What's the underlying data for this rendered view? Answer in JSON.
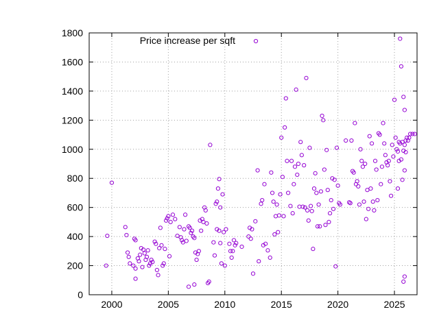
{
  "chart_data": {
    "type": "scatter",
    "title": "",
    "xlabel": "",
    "ylabel": "",
    "xlim": [
      1998,
      2027
    ],
    "ylim": [
      0,
      1800
    ],
    "xticks": [
      2000,
      2005,
      2010,
      2015,
      2020,
      2025
    ],
    "yticks": [
      0,
      200,
      400,
      600,
      800,
      1000,
      1200,
      1400,
      1600,
      1800
    ],
    "grid": true,
    "legend": {
      "position": "top-left"
    },
    "series": [
      {
        "name": "Price increase per sqft",
        "color": "#9400d3",
        "marker": "open-circle",
        "points": [
          [
            1999.5,
            200
          ],
          [
            1999.6,
            405
          ],
          [
            2000.0,
            770
          ],
          [
            2001.2,
            465
          ],
          [
            2001.3,
            410
          ],
          [
            2001.4,
            290
          ],
          [
            2001.5,
            260
          ],
          [
            2001.6,
            215
          ],
          [
            2001.9,
            200
          ],
          [
            2002.0,
            385
          ],
          [
            2002.1,
            375
          ],
          [
            2002.1,
            180
          ],
          [
            2002.1,
            110
          ],
          [
            2002.3,
            250
          ],
          [
            2002.4,
            230
          ],
          [
            2002.5,
            275
          ],
          [
            2002.6,
            320
          ],
          [
            2002.7,
            190
          ],
          [
            2002.8,
            310
          ],
          [
            2002.9,
            285
          ],
          [
            2003.0,
            240
          ],
          [
            2003.1,
            260
          ],
          [
            2003.2,
            305
          ],
          [
            2003.3,
            200
          ],
          [
            2003.4,
            215
          ],
          [
            2003.5,
            240
          ],
          [
            2003.6,
            225
          ],
          [
            2003.8,
            365
          ],
          [
            2003.9,
            350
          ],
          [
            2004.0,
            170
          ],
          [
            2004.1,
            135
          ],
          [
            2004.2,
            320
          ],
          [
            2004.3,
            460
          ],
          [
            2004.4,
            340
          ],
          [
            2004.5,
            200
          ],
          [
            2004.6,
            215
          ],
          [
            2004.7,
            315
          ],
          [
            2004.8,
            510
          ],
          [
            2004.9,
            525
          ],
          [
            2005.0,
            540
          ],
          [
            2005.1,
            265
          ],
          [
            2005.2,
            500
          ],
          [
            2005.4,
            550
          ],
          [
            2005.6,
            520
          ],
          [
            2005.8,
            405
          ],
          [
            2006.0,
            465
          ],
          [
            2006.1,
            395
          ],
          [
            2006.2,
            375
          ],
          [
            2006.3,
            360
          ],
          [
            2006.4,
            450
          ],
          [
            2006.5,
            550
          ],
          [
            2006.6,
            370
          ],
          [
            2006.8,
            470
          ],
          [
            2006.9,
            460
          ],
          [
            2007.0,
            425
          ],
          [
            2007.1,
            440
          ],
          [
            2007.2,
            400
          ],
          [
            2007.3,
            390
          ],
          [
            2007.4,
            290
          ],
          [
            2007.5,
            240
          ],
          [
            2007.6,
            280
          ],
          [
            2007.7,
            300
          ],
          [
            2007.8,
            510
          ],
          [
            2007.9,
            440
          ],
          [
            2008.0,
            520
          ],
          [
            2008.1,
            500
          ],
          [
            2008.2,
            600
          ],
          [
            2008.3,
            580
          ],
          [
            2008.4,
            490
          ],
          [
            2008.5,
            80
          ],
          [
            2008.6,
            90
          ],
          [
            2006.8,
            55
          ],
          [
            2007.3,
            70
          ],
          [
            2008.7,
            1030
          ],
          [
            2009.0,
            360
          ],
          [
            2009.2,
            625
          ],
          [
            2009.3,
            640
          ],
          [
            2009.4,
            730
          ],
          [
            2009.5,
            795
          ],
          [
            2009.6,
            600
          ],
          [
            2009.1,
            270
          ],
          [
            2009.3,
            450
          ],
          [
            2009.5,
            440
          ],
          [
            2009.6,
            355
          ],
          [
            2009.7,
            215
          ],
          [
            2009.8,
            690
          ],
          [
            2009.9,
            430
          ],
          [
            2010.0,
            200
          ],
          [
            2010.1,
            450
          ],
          [
            2010.4,
            350
          ],
          [
            2010.5,
            300
          ],
          [
            2010.6,
            255
          ],
          [
            2010.7,
            300
          ],
          [
            2010.8,
            375
          ],
          [
            2010.9,
            340
          ],
          [
            2011.0,
            355
          ],
          [
            2011.5,
            330
          ],
          [
            2012.1,
            400
          ],
          [
            2012.2,
            460
          ],
          [
            2012.3,
            385
          ],
          [
            2012.4,
            450
          ],
          [
            2012.5,
            145
          ],
          [
            2012.7,
            505
          ],
          [
            2012.9,
            855
          ],
          [
            2013.0,
            230
          ],
          [
            2013.2,
            625
          ],
          [
            2013.3,
            650
          ],
          [
            2013.4,
            340
          ],
          [
            2013.5,
            760
          ],
          [
            2013.6,
            350
          ],
          [
            2013.8,
            305
          ],
          [
            2014.0,
            255
          ],
          [
            2014.1,
            840
          ],
          [
            2014.2,
            700
          ],
          [
            2014.3,
            640
          ],
          [
            2014.4,
            415
          ],
          [
            2014.5,
            540
          ],
          [
            2014.6,
            620
          ],
          [
            2014.7,
            430
          ],
          [
            2014.8,
            545
          ],
          [
            2014.9,
            690
          ],
          [
            2015.0,
            1080
          ],
          [
            2015.1,
            810
          ],
          [
            2015.2,
            540
          ],
          [
            2015.3,
            1150
          ],
          [
            2015.4,
            1350
          ],
          [
            2015.5,
            920
          ],
          [
            2015.6,
            700
          ],
          [
            2015.8,
            610
          ],
          [
            2015.9,
            920
          ],
          [
            2016.0,
            560
          ],
          [
            2016.1,
            760
          ],
          [
            2016.2,
            880
          ],
          [
            2016.3,
            1410
          ],
          [
            2016.4,
            825
          ],
          [
            2016.5,
            900
          ],
          [
            2016.6,
            605
          ],
          [
            2016.7,
            1050
          ],
          [
            2016.8,
            960
          ],
          [
            2016.9,
            605
          ],
          [
            2017.0,
            890
          ],
          [
            2017.1,
            600
          ],
          [
            2017.2,
            1490
          ],
          [
            2017.3,
            580
          ],
          [
            2017.4,
            510
          ],
          [
            2017.5,
            1010
          ],
          [
            2017.6,
            610
          ],
          [
            2017.7,
            575
          ],
          [
            2017.8,
            315
          ],
          [
            2017.9,
            730
          ],
          [
            2018.0,
            835
          ],
          [
            2018.1,
            700
          ],
          [
            2018.2,
            470
          ],
          [
            2018.3,
            620
          ],
          [
            2018.4,
            470
          ],
          [
            2018.5,
            710
          ],
          [
            2018.6,
            1230
          ],
          [
            2018.7,
            1200
          ],
          [
            2018.8,
            860
          ],
          [
            2018.9,
            480
          ],
          [
            2019.0,
            995
          ],
          [
            2019.1,
            720
          ],
          [
            2019.2,
            500
          ],
          [
            2019.3,
            560
          ],
          [
            2019.4,
            650
          ],
          [
            2019.5,
            800
          ],
          [
            2019.6,
            590
          ],
          [
            2019.7,
            790
          ],
          [
            2019.8,
            195
          ],
          [
            2019.9,
            1010
          ],
          [
            2020.0,
            750
          ],
          [
            2020.1,
            630
          ],
          [
            2020.2,
            620
          ],
          [
            2020.7,
            1060
          ],
          [
            2021.0,
            635
          ],
          [
            2021.1,
            630
          ],
          [
            2021.2,
            1060
          ],
          [
            2021.3,
            850
          ],
          [
            2021.4,
            840
          ],
          [
            2021.5,
            1180
          ],
          [
            2021.6,
            760
          ],
          [
            2021.7,
            780
          ],
          [
            2021.8,
            745
          ],
          [
            2021.9,
            620
          ],
          [
            2022.0,
            1000
          ],
          [
            2022.1,
            920
          ],
          [
            2022.2,
            880
          ],
          [
            2022.3,
            640
          ],
          [
            2022.4,
            900
          ],
          [
            2022.5,
            520
          ],
          [
            2022.6,
            720
          ],
          [
            2022.7,
            590
          ],
          [
            2022.8,
            1090
          ],
          [
            2022.9,
            730
          ],
          [
            2023.0,
            1040
          ],
          [
            2023.1,
            640
          ],
          [
            2023.2,
            580
          ],
          [
            2023.3,
            920
          ],
          [
            2023.4,
            860
          ],
          [
            2023.5,
            650
          ],
          [
            2023.6,
            1110
          ],
          [
            2023.7,
            1100
          ],
          [
            2023.8,
            760
          ],
          [
            2023.9,
            880
          ],
          [
            2024.0,
            1180
          ],
          [
            2024.1,
            1040
          ],
          [
            2024.2,
            960
          ],
          [
            2024.3,
            910
          ],
          [
            2024.4,
            890
          ],
          [
            2024.5,
            920
          ],
          [
            2024.6,
            780
          ],
          [
            2024.7,
            680
          ],
          [
            2024.8,
            1030
          ],
          [
            2024.9,
            950
          ],
          [
            2025.0,
            1340
          ],
          [
            2025.1,
            1080
          ],
          [
            2025.2,
            1000
          ],
          [
            2025.3,
            730
          ],
          [
            2025.4,
            920
          ],
          [
            2025.5,
            1040
          ],
          [
            2025.6,
            930
          ],
          [
            2025.7,
            790
          ],
          [
            2025.8,
            90
          ],
          [
            2025.9,
            125
          ],
          [
            2025.3,
            985
          ],
          [
            2025.4,
            1050
          ],
          [
            2025.5,
            1760
          ],
          [
            2025.6,
            1570
          ],
          [
            2025.7,
            1050
          ],
          [
            2025.8,
            1360
          ],
          [
            2025.8,
            990
          ],
          [
            2025.9,
            1270
          ],
          [
            2025.9,
            1030
          ],
          [
            2026.0,
            1060
          ],
          [
            2026.0,
            980
          ],
          [
            2026.1,
            1080
          ],
          [
            2026.2,
            1060
          ],
          [
            2026.3,
            1080
          ],
          [
            2026.4,
            1105
          ],
          [
            2026.6,
            1105
          ],
          [
            2026.8,
            1105
          ],
          [
            2025.9,
            855
          ]
        ]
      }
    ]
  }
}
